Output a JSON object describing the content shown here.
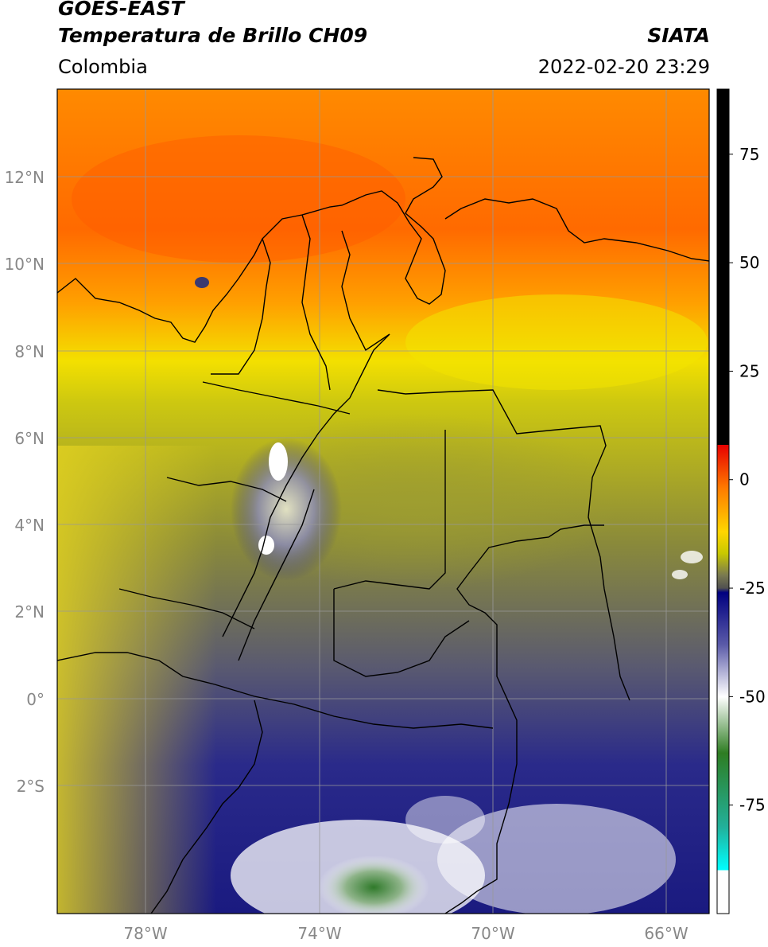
{
  "header": {
    "satellite": "GOES-EAST",
    "product": "Temperatura de Brillo CH09",
    "agency": "SIATA",
    "region": "Colombia",
    "timestamp": "2022-02-20 23:29"
  },
  "map": {
    "lon_labels": [
      "78°W",
      "74°W",
      "70°W",
      "66°W"
    ],
    "lat_labels": [
      "12°N",
      "10°N",
      "8°N",
      "6°N",
      "4°N",
      "2°N",
      "0°",
      "2°S"
    ],
    "border_color": "#000000",
    "grid_color": "#999999"
  },
  "colorbar": {
    "tick_labels": [
      "75",
      "50",
      "25",
      "0",
      "-25",
      "-50",
      "-75"
    ],
    "stops": [
      {
        "color": "#000000",
        "value": 90
      },
      {
        "color": "#000000",
        "value": 8
      },
      {
        "color": "#e60000",
        "value": 8
      },
      {
        "color": "#ff7b00",
        "value": -2
      },
      {
        "color": "#ffd600",
        "value": -12
      },
      {
        "color": "#c8c800",
        "value": -17
      },
      {
        "color": "#7a7a50",
        "value": -22
      },
      {
        "color": "#505050",
        "value": -25
      },
      {
        "color": "#000080",
        "value": -26
      },
      {
        "color": "#5a5aa8",
        "value": -38
      },
      {
        "color": "#ffffff",
        "value": -50
      },
      {
        "color": "#2e7d22",
        "value": -63
      },
      {
        "color": "#22b09a",
        "value": -80
      },
      {
        "color": "#00ffff",
        "value": -90
      },
      {
        "color": "#ffffff",
        "value": -90
      }
    ]
  }
}
